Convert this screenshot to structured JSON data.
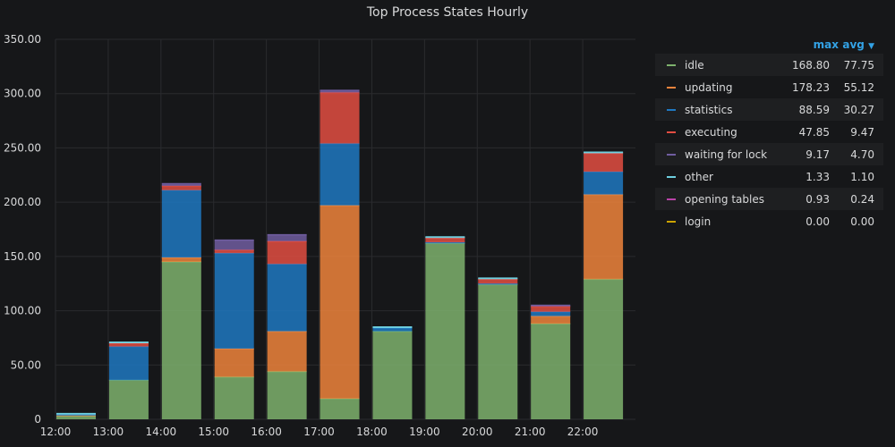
{
  "panel": {
    "title": "Top Process States Hourly"
  },
  "legend": {
    "max_label": "max",
    "avg_label": "avg",
    "sort_icon": "chevron-down-icon",
    "items": [
      {
        "name": "idle",
        "max": "168.80",
        "avg": "77.75",
        "color": "#7eb26d"
      },
      {
        "name": "updating",
        "max": "178.23",
        "avg": "55.12",
        "color": "#ef843c"
      },
      {
        "name": "statistics",
        "max": "88.59",
        "avg": "30.27",
        "color": "#1f78c1"
      },
      {
        "name": "executing",
        "max": "47.85",
        "avg": "9.47",
        "color": "#e24d42"
      },
      {
        "name": "waiting for lock",
        "max": "9.17",
        "avg": "4.70",
        "color": "#705da0"
      },
      {
        "name": "other",
        "max": "1.33",
        "avg": "1.10",
        "color": "#6ed0e0"
      },
      {
        "name": "opening tables",
        "max": "0.93",
        "avg": "0.24",
        "color": "#ba43a9"
      },
      {
        "name": "login",
        "max": "0.00",
        "avg": "0.00",
        "color": "#cca300"
      }
    ]
  },
  "chart_data": {
    "type": "bar",
    "stacked": true,
    "categories": [
      "12:00",
      "13:00",
      "14:00",
      "15:00",
      "16:00",
      "17:00",
      "18:00",
      "19:00",
      "20:00",
      "21:00",
      "22:00"
    ],
    "ylim": [
      0,
      350
    ],
    "yticks": [
      "0",
      "50.00",
      "100.00",
      "150.00",
      "200.00",
      "250.00",
      "300.00",
      "350.00"
    ],
    "grid": true,
    "legend_position": "right",
    "series": [
      {
        "name": "idle",
        "values": [
          3,
          36,
          145,
          39,
          44,
          19,
          81,
          162,
          124,
          88,
          129
        ]
      },
      {
        "name": "updating",
        "values": [
          0.5,
          0,
          4,
          26,
          37,
          178,
          0,
          0,
          0,
          7,
          78
        ]
      },
      {
        "name": "statistics",
        "values": [
          0.8,
          31,
          62,
          88,
          62,
          57,
          3,
          1,
          1,
          4,
          21
        ]
      },
      {
        "name": "executing",
        "values": [
          0,
          3,
          4,
          3,
          21,
          47,
          0,
          4,
          4,
          5,
          17
        ]
      },
      {
        "name": "waiting for lock",
        "values": [
          0,
          0,
          2,
          9,
          6,
          2,
          0,
          0,
          0,
          1,
          0
        ]
      },
      {
        "name": "other",
        "values": [
          1,
          1,
          0,
          0,
          0,
          0,
          1,
          1,
          1,
          0,
          1
        ]
      },
      {
        "name": "opening tables",
        "values": [
          0,
          0,
          0,
          0,
          0,
          0,
          0,
          0,
          0,
          0,
          0
        ]
      },
      {
        "name": "login",
        "values": [
          0,
          0,
          0,
          0,
          0,
          0,
          0,
          0,
          0,
          0,
          0
        ]
      }
    ]
  }
}
